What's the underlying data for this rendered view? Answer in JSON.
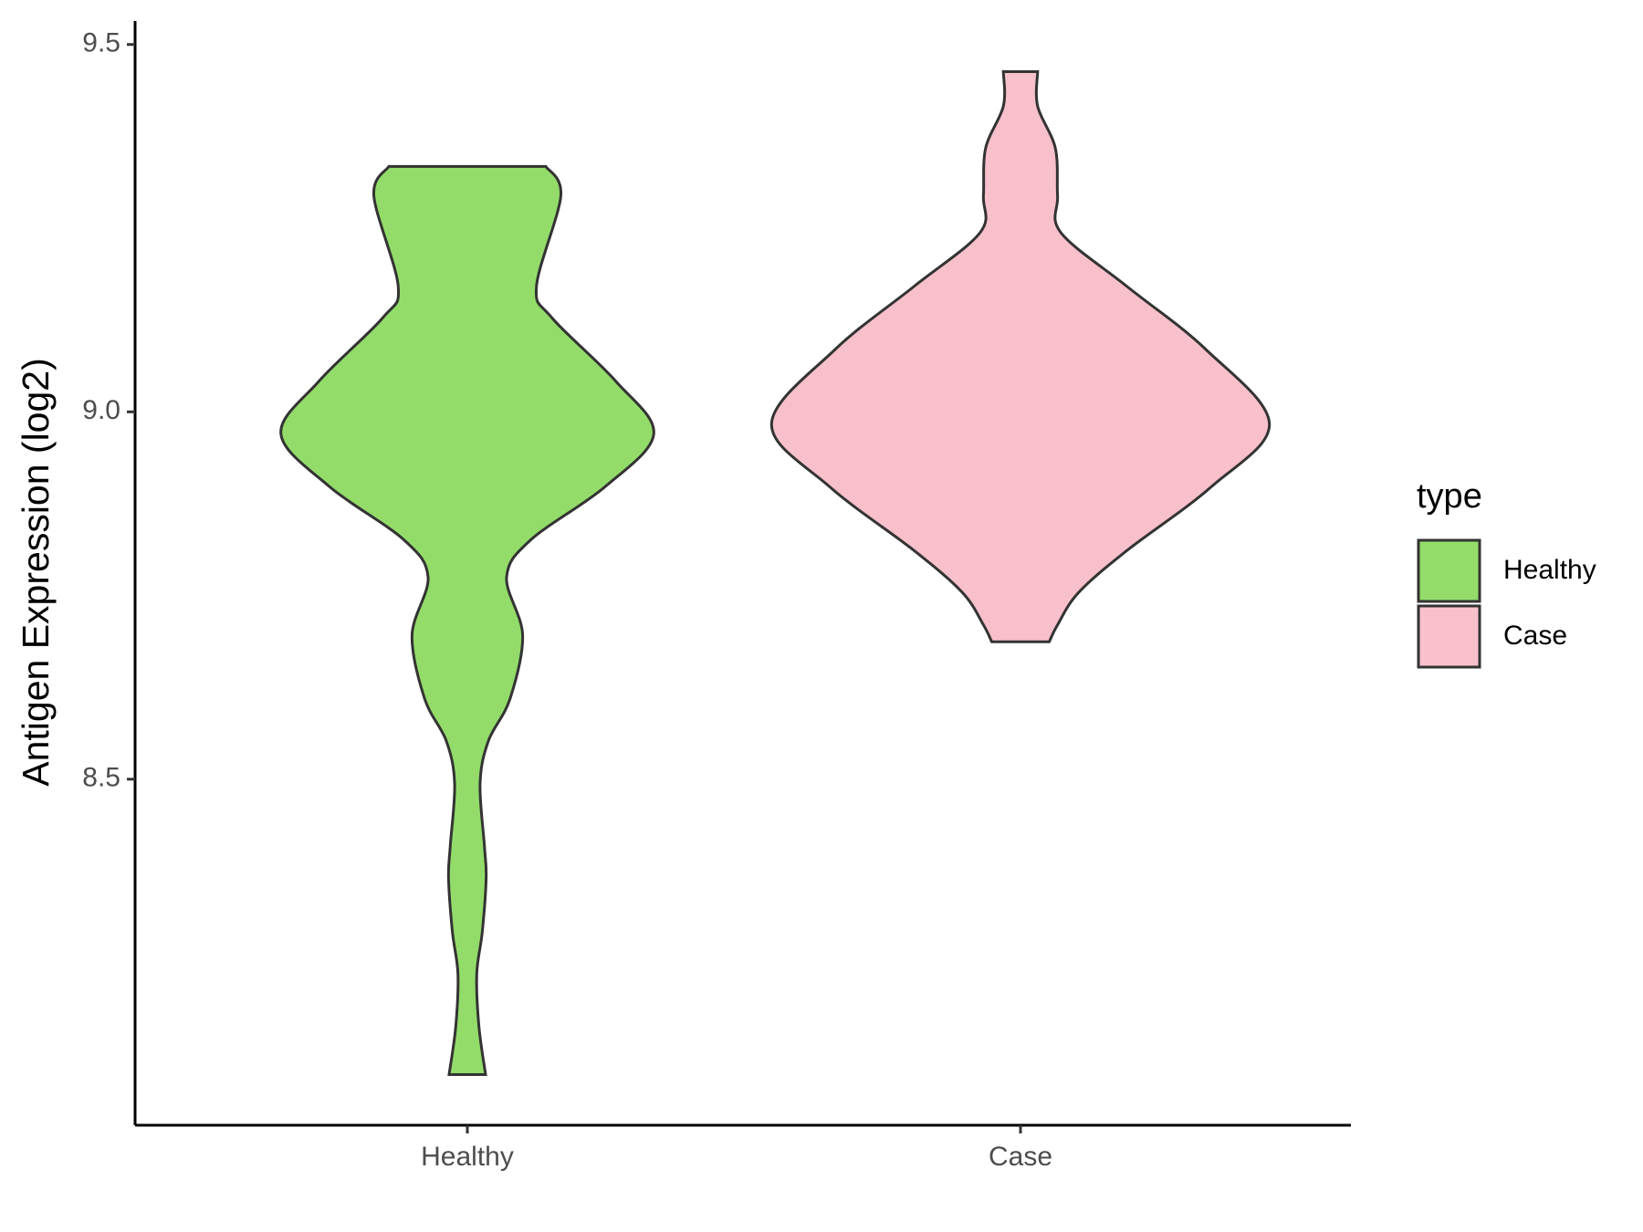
{
  "chart_data": {
    "type": "violin",
    "y_label": "Antigen Expression (log2)",
    "categories": [
      "Healthy",
      "Case"
    ],
    "legend_title": "type",
    "legend_position": "right",
    "ylim": [
      8.029,
      9.532
    ],
    "yticks": [
      8.5,
      {
        "value": 9,
        "label": "9.0"
      },
      9.5
    ],
    "violins": [
      {
        "name": "Healthy",
        "color": "#93dc6a",
        "y": [
          9.334,
          9.294,
          9.171,
          9.128,
          9.042,
          8.97,
          8.898,
          8.826,
          8.775,
          8.696,
          8.609,
          8.552,
          8.494,
          8.408,
          8.365,
          8.292,
          8.235,
          8.163,
          8.098
        ],
        "width": [
          0.142,
          0.169,
          0.125,
          0.153,
          0.268,
          0.337,
          0.249,
          0.115,
          0.071,
          0.1,
          0.077,
          0.038,
          0.023,
          0.031,
          0.034,
          0.027,
          0.017,
          0.021,
          0.033
        ]
      },
      {
        "name": "Case",
        "color": "#f8c0cb",
        "y": [
          9.463,
          9.416,
          9.359,
          9.294,
          9.244,
          9.171,
          9.085,
          8.984,
          8.898,
          8.811,
          8.754,
          8.71,
          8.687
        ],
        "width": [
          0.031,
          0.031,
          0.063,
          0.067,
          0.073,
          0.192,
          0.335,
          0.45,
          0.345,
          0.192,
          0.105,
          0.067,
          0.052
        ]
      }
    ]
  }
}
